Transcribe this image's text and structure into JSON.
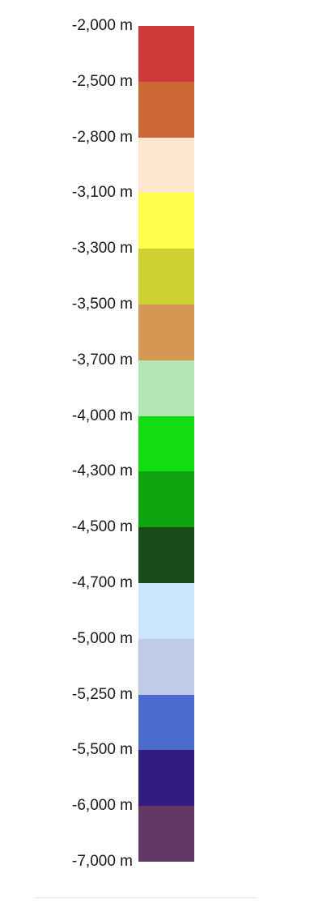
{
  "legend": {
    "labels": [
      "-2,000 m",
      "-2,500 m",
      "-2,800 m",
      "-3,100 m",
      "-3,300 m",
      "-3,500 m",
      "-3,700 m",
      "-4,000 m",
      "-4,300 m",
      "-4,500 m",
      "-4,700 m",
      "-5,000 m",
      "-5,250 m",
      "-5,500 m",
      "-6,000 m",
      "-7,000 m"
    ],
    "colors": [
      "#cf3a3a",
      "#cc6833",
      "#fee6cf",
      "#ffff4c",
      "#ccd033",
      "#d49854",
      "#b5e5b5",
      "#11dd11",
      "#10a510",
      "#1b4b1a",
      "#cbe4ff",
      "#c2cae9",
      "#4d6acd",
      "#331c80",
      "#633766"
    ]
  }
}
